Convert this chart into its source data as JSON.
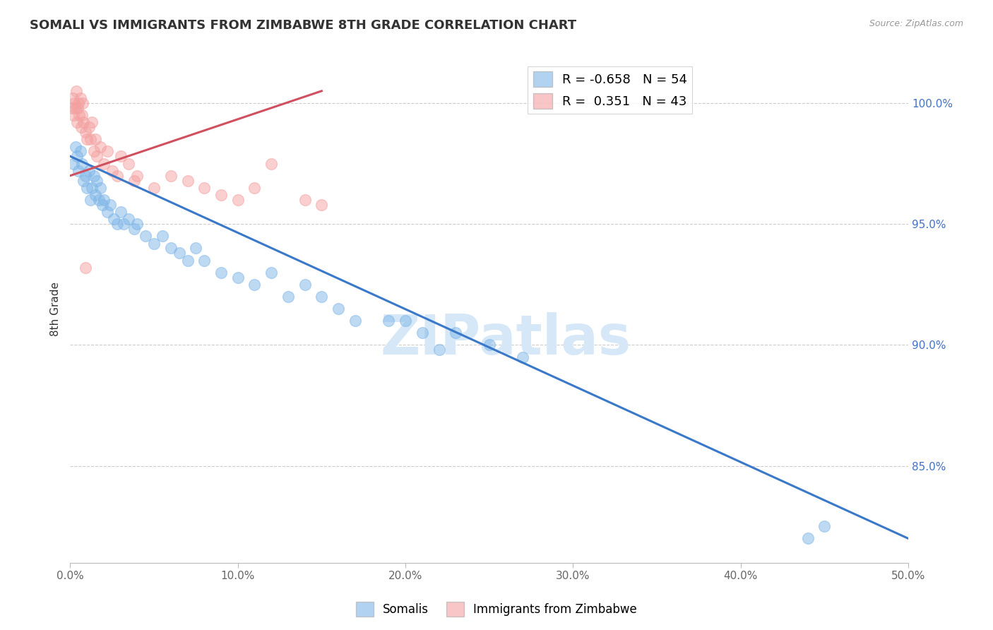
{
  "title": "SOMALI VS IMMIGRANTS FROM ZIMBABWE 8TH GRADE CORRELATION CHART",
  "source": "Source: ZipAtlas.com",
  "ylabel_left": "8th Grade",
  "xlim": [
    0.0,
    50.0
  ],
  "ylim": [
    81.0,
    102.0
  ],
  "ytick_vals": [
    85.0,
    90.0,
    95.0,
    100.0
  ],
  "xtick_vals": [
    0.0,
    10.0,
    20.0,
    30.0,
    40.0,
    50.0
  ],
  "somali_R": -0.658,
  "somali_N": 54,
  "zimb_R": 0.351,
  "zimb_N": 43,
  "blue_color": "#7EB6E8",
  "pink_color": "#F4A0A0",
  "blue_line_color": "#3A78C9",
  "pink_line_color": "#D05060",
  "watermark": "ZIPatlas",
  "watermark_color": "#D6E8F8",
  "legend_label_blue": "Somalis",
  "legend_label_pink": "Immigrants from Zimbabwe",
  "somali_x": [
    0.2,
    0.3,
    0.4,
    0.5,
    0.6,
    0.7,
    0.8,
    0.9,
    1.0,
    1.1,
    1.2,
    1.3,
    1.4,
    1.5,
    1.6,
    1.7,
    1.8,
    1.9,
    2.0,
    2.2,
    2.4,
    2.6,
    2.8,
    3.0,
    3.2,
    3.5,
    3.8,
    4.0,
    4.5,
    5.0,
    5.5,
    6.0,
    6.5,
    7.0,
    7.5,
    8.0,
    9.0,
    10.0,
    11.0,
    12.0,
    13.0,
    14.0,
    15.0,
    16.0,
    17.0,
    19.0,
    21.0,
    23.0,
    25.0,
    27.0,
    20.0,
    22.0,
    45.0,
    44.0
  ],
  "somali_y": [
    97.5,
    98.2,
    97.8,
    97.2,
    98.0,
    97.5,
    96.8,
    97.0,
    96.5,
    97.2,
    96.0,
    96.5,
    97.0,
    96.2,
    96.8,
    96.0,
    96.5,
    95.8,
    96.0,
    95.5,
    95.8,
    95.2,
    95.0,
    95.5,
    95.0,
    95.2,
    94.8,
    95.0,
    94.5,
    94.2,
    94.5,
    94.0,
    93.8,
    93.5,
    94.0,
    93.5,
    93.0,
    92.8,
    92.5,
    93.0,
    92.0,
    92.5,
    92.0,
    91.5,
    91.0,
    91.0,
    90.5,
    90.5,
    90.0,
    89.5,
    91.0,
    89.8,
    82.5,
    82.0
  ],
  "zimb_x": [
    0.1,
    0.15,
    0.2,
    0.25,
    0.3,
    0.35,
    0.4,
    0.45,
    0.5,
    0.55,
    0.6,
    0.65,
    0.7,
    0.75,
    0.8,
    0.9,
    1.0,
    1.1,
    1.2,
    1.3,
    1.4,
    1.5,
    1.6,
    1.8,
    2.0,
    2.2,
    2.5,
    3.0,
    3.5,
    4.0,
    5.0,
    6.0,
    7.0,
    8.0,
    9.0,
    10.0,
    11.0,
    12.0,
    14.0,
    15.0,
    2.8,
    3.8,
    0.9
  ],
  "zimb_y": [
    99.8,
    100.2,
    99.5,
    100.0,
    99.8,
    100.5,
    99.2,
    99.8,
    100.0,
    99.5,
    100.2,
    99.0,
    99.5,
    100.0,
    99.2,
    98.8,
    98.5,
    99.0,
    98.5,
    99.2,
    98.0,
    98.5,
    97.8,
    98.2,
    97.5,
    98.0,
    97.2,
    97.8,
    97.5,
    97.0,
    96.5,
    97.0,
    96.8,
    96.5,
    96.2,
    96.0,
    96.5,
    97.5,
    96.0,
    95.8,
    97.0,
    96.8,
    93.2
  ],
  "blue_trendline_x": [
    0.0,
    50.0
  ],
  "blue_trendline_y": [
    97.8,
    82.0
  ],
  "pink_trendline_x": [
    0.0,
    15.0
  ],
  "pink_trendline_y": [
    97.0,
    100.5
  ]
}
